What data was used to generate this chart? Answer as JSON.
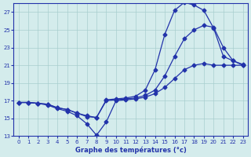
{
  "title": "Graphe des températures (°c)",
  "bg_color": "#d4ecec",
  "grid_color": "#a8cece",
  "line_color": "#2233aa",
  "marker": "D",
  "markersize": 2.5,
  "linewidth": 0.9,
  "xlim": [
    -0.5,
    23.5
  ],
  "ylim": [
    13,
    28
  ],
  "xticks": [
    0,
    1,
    2,
    3,
    4,
    5,
    6,
    7,
    8,
    9,
    10,
    11,
    12,
    13,
    14,
    15,
    16,
    17,
    18,
    19,
    20,
    21,
    22,
    23
  ],
  "yticks": [
    13,
    15,
    17,
    19,
    21,
    23,
    25,
    27
  ],
  "series1": {
    "x": [
      0,
      1,
      2,
      3,
      4,
      5,
      6,
      7,
      8,
      9,
      10,
      11,
      12,
      13,
      14,
      15,
      16,
      17,
      18,
      19,
      20,
      21,
      22,
      23
    ],
    "y": [
      16.8,
      16.8,
      16.7,
      16.5,
      16.1,
      15.8,
      15.3,
      14.4,
      13.1,
      14.6,
      17.0,
      17.1,
      17.2,
      17.4,
      17.8,
      18.5,
      19.5,
      20.5,
      21.0,
      21.2,
      21.0,
      21.0,
      21.0,
      21.0
    ]
  },
  "series2": {
    "x": [
      0,
      1,
      2,
      3,
      4,
      5,
      6,
      7,
      8,
      9,
      10,
      11,
      12,
      13,
      14,
      15,
      16,
      17,
      18,
      19,
      20,
      21,
      22,
      23
    ],
    "y": [
      16.8,
      16.8,
      16.7,
      16.6,
      16.2,
      16.0,
      15.6,
      15.3,
      15.1,
      17.0,
      17.1,
      17.2,
      17.3,
      17.6,
      18.2,
      19.8,
      22.0,
      24.0,
      25.0,
      25.5,
      25.3,
      23.0,
      21.5,
      21.0
    ]
  },
  "series3": {
    "x": [
      0,
      1,
      2,
      3,
      4,
      5,
      6,
      7,
      8,
      9,
      10,
      11,
      12,
      13,
      14,
      15,
      16,
      17,
      18,
      19,
      20,
      21,
      22,
      23
    ],
    "y": [
      16.8,
      16.8,
      16.7,
      16.6,
      16.2,
      16.0,
      15.6,
      15.2,
      15.1,
      17.1,
      17.2,
      17.3,
      17.5,
      18.2,
      20.5,
      24.5,
      27.2,
      28.1,
      27.8,
      27.2,
      25.2,
      22.0,
      21.5,
      21.1
    ]
  }
}
